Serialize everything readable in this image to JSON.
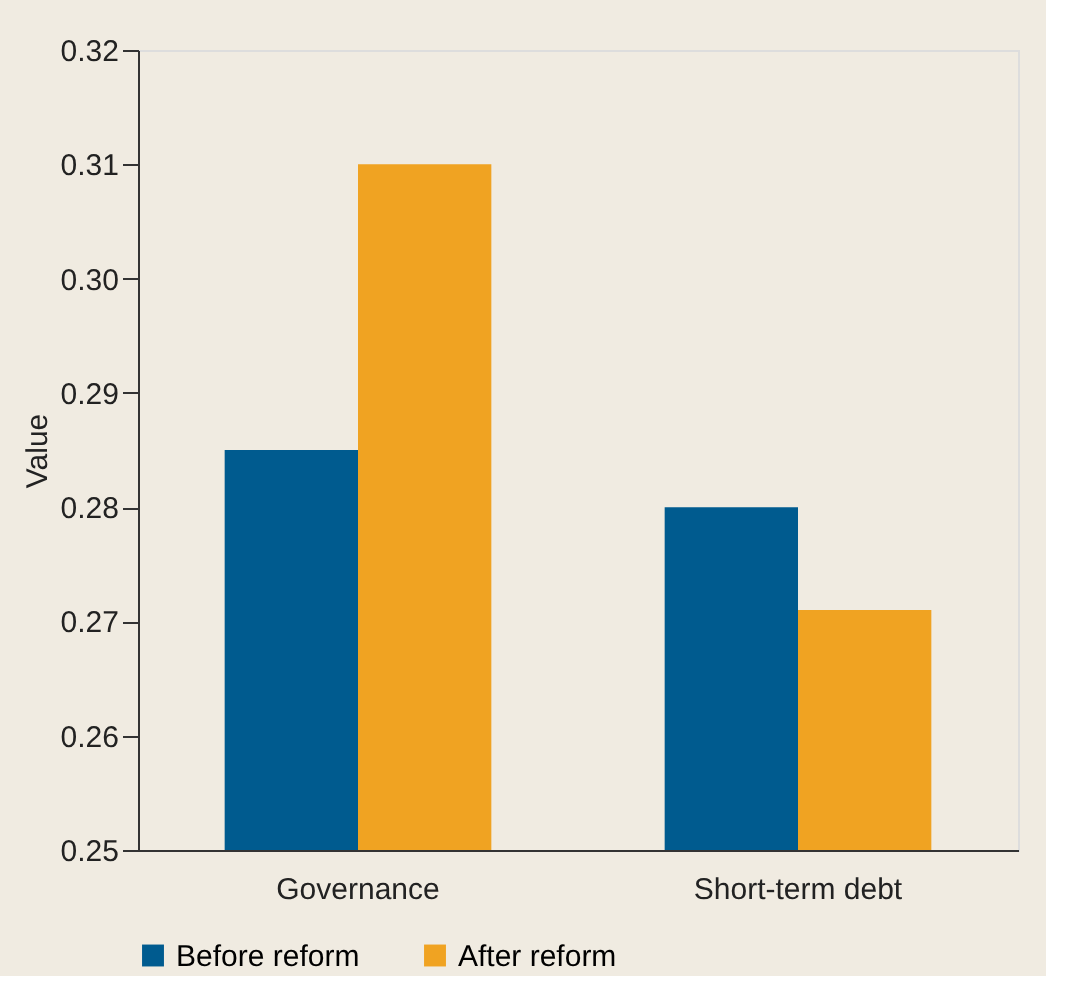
{
  "chart_data": {
    "type": "bar",
    "ylabel": "Value",
    "categories": [
      "Governance",
      "Short-term debt"
    ],
    "series": [
      {
        "name": "Before reform",
        "color": "#005b8f",
        "values": [
          0.285,
          0.28
        ]
      },
      {
        "name": "After reform",
        "color": "#f0a322",
        "values": [
          0.31,
          0.271
        ]
      }
    ],
    "ylim": [
      0.25,
      0.32
    ],
    "yticks": [
      0.25,
      0.26,
      0.27,
      0.28,
      0.29,
      {
        "value": 0.3,
        "label": "0.30"
      },
      0.31,
      0.32
    ],
    "grid": false,
    "legend": "bottom"
  }
}
